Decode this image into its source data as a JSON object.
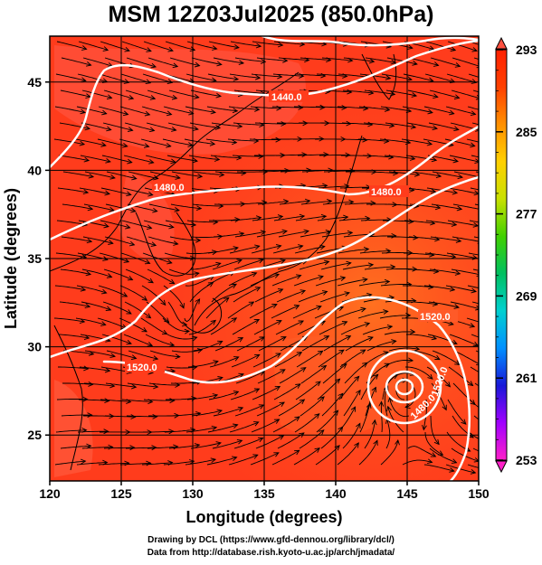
{
  "title": "MSM 12Z03Jul2025 (850.0hPa)",
  "axes": {
    "xlabel": "Longitude (degrees)",
    "ylabel": "Latitude  (degrees)",
    "xticks": [
      120,
      125,
      130,
      135,
      140,
      145,
      150
    ],
    "yticks": [
      25,
      30,
      35,
      40,
      45
    ],
    "xlim": [
      120,
      150
    ],
    "ylim": [
      22.4,
      47.6
    ]
  },
  "colorbar": {
    "ticks": [
      293,
      285,
      277,
      269,
      261,
      253
    ],
    "range": [
      253,
      293
    ],
    "colors": [
      "#ff20c8",
      "#a000ff",
      "#1818d8",
      "#0090ff",
      "#00d0d0",
      "#00c060",
      "#40d000",
      "#c8e000",
      "#ffd000",
      "#ff9000",
      "#ff4000",
      "#ff2000"
    ]
  },
  "contours": {
    "interval": 40,
    "labels": [
      "1440.0",
      "1480.0",
      "1480.0",
      "1520.0",
      "1520.0",
      "1520.0",
      "1480.0"
    ]
  },
  "colors": {
    "field_warm": "#ff3a1a",
    "field_cool": "#ff5a40",
    "field_ocean_east": "#ff6a18",
    "contour": "#ffffff",
    "streamline": "#000000"
  },
  "credits": {
    "line1": "Drawing by DCL (https://www.gfd-dennou.org/library/dcl/)",
    "line2": "Data from http://database.rish.kyoto-u.ac.jp/arch/jmadata/"
  }
}
